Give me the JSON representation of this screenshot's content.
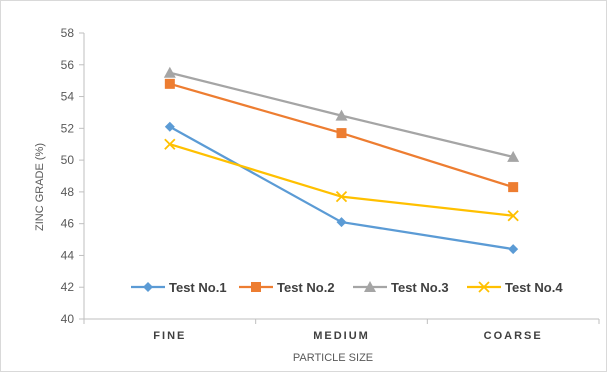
{
  "chart_data": {
    "type": "line",
    "categories": [
      "FINE",
      "MEDIUM",
      "COARSE"
    ],
    "series": [
      {
        "name": "Test No.1",
        "values": [
          52.1,
          46.1,
          44.4
        ],
        "color": "#5b9bd5",
        "marker": "diamond"
      },
      {
        "name": "Test No.2",
        "values": [
          54.8,
          51.7,
          48.3
        ],
        "color": "#ed7d31",
        "marker": "square"
      },
      {
        "name": "Test No.3",
        "values": [
          55.5,
          52.8,
          50.2
        ],
        "color": "#a5a5a5",
        "marker": "triangle"
      },
      {
        "name": "Test No.4",
        "values": [
          51.0,
          47.7,
          46.5
        ],
        "color": "#ffc000",
        "marker": "x"
      }
    ],
    "xlabel": "PARTICLE SIZE",
    "ylabel": "ZINC GRADE (%)",
    "ylim": [
      40,
      58
    ],
    "yticks": [
      40,
      42,
      44,
      46,
      48,
      50,
      52,
      54,
      56,
      58
    ],
    "grid": false,
    "legend": "inside-bottom"
  }
}
